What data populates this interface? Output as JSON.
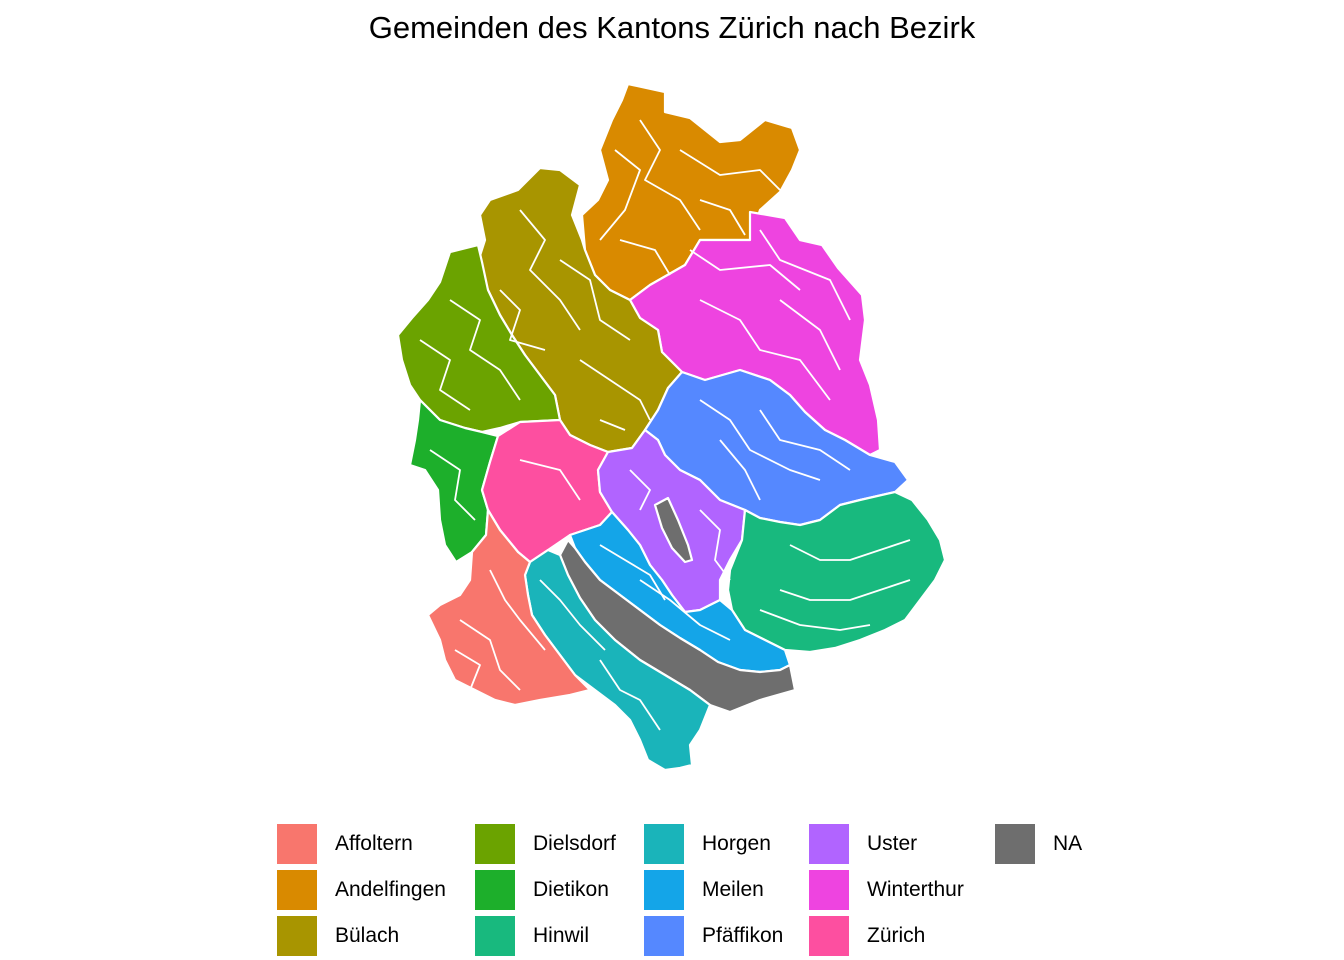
{
  "map": {
    "title": "Gemeinden des Kantons Zürich nach Bezirk",
    "legend": [
      {
        "label": "Affoltern",
        "color": "#F8766D",
        "key": "affoltern"
      },
      {
        "label": "Andelfingen",
        "color": "#D98A00",
        "key": "andelfingen"
      },
      {
        "label": "Bülach",
        "color": "#A89500",
        "key": "bulach"
      },
      {
        "label": "Dielsdorf",
        "color": "#6BA300",
        "key": "dielsdorf"
      },
      {
        "label": "Dietikon",
        "color": "#1DAF2B",
        "key": "dietikon"
      },
      {
        "label": "Hinwil",
        "color": "#18B97E",
        "key": "hinwil"
      },
      {
        "label": "Horgen",
        "color": "#1AB4BA",
        "key": "horgen"
      },
      {
        "label": "Meilen",
        "color": "#14A5E8",
        "key": "meilen"
      },
      {
        "label": "Pfäffikon",
        "color": "#5588FF",
        "key": "pfaffikon"
      },
      {
        "label": "Uster",
        "color": "#B164FF",
        "key": "uster"
      },
      {
        "label": "Winterthur",
        "color": "#EE44E0",
        "key": "winterthur"
      },
      {
        "label": "Zürich",
        "color": "#FD4FA0",
        "key": "zurich"
      },
      {
        "label": "NA",
        "color": "#6E6E6E",
        "key": "na"
      }
    ]
  }
}
